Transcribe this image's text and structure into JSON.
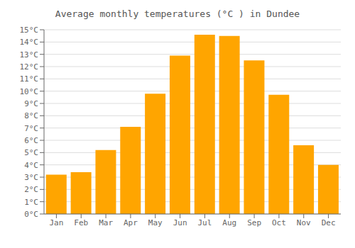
{
  "chart_data": {
    "type": "bar",
    "title": "Average monthly temperatures (°C ) in Dundee",
    "categories": [
      "Jan",
      "Feb",
      "Mar",
      "Apr",
      "May",
      "Jun",
      "Jul",
      "Aug",
      "Sep",
      "Oct",
      "Nov",
      "Dec"
    ],
    "values": [
      3.2,
      3.4,
      5.2,
      7.1,
      9.8,
      12.9,
      14.6,
      14.5,
      12.5,
      9.7,
      5.6,
      4.0
    ],
    "color": "#FFA500",
    "ylim": [
      0,
      15
    ],
    "yticks": [
      {
        "value": 0,
        "label": "0°C"
      },
      {
        "value": 1,
        "label": "1°C"
      },
      {
        "value": 2,
        "label": "2°C"
      },
      {
        "value": 3,
        "label": "3°C"
      },
      {
        "value": 4,
        "label": "4°C"
      },
      {
        "value": 5,
        "label": "5°C"
      },
      {
        "value": 6,
        "label": "6°C"
      },
      {
        "value": 7,
        "label": "7°C"
      },
      {
        "value": 8,
        "label": "8°C"
      },
      {
        "value": 9,
        "label": "9°C"
      },
      {
        "value": 10,
        "label": "10°C"
      },
      {
        "value": 11,
        "label": "11°C"
      },
      {
        "value": 12,
        "label": "12°C"
      },
      {
        "value": 13,
        "label": "13°C"
      },
      {
        "value": 14,
        "label": "14°C"
      },
      {
        "value": 15,
        "label": "15°C"
      }
    ],
    "grid": true
  }
}
